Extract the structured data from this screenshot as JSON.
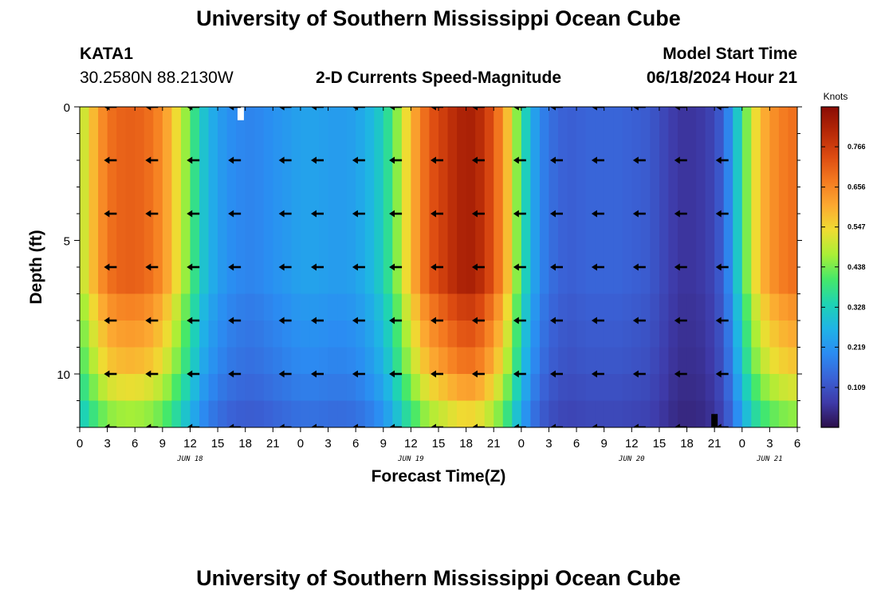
{
  "header": {
    "title": "University of Southern Mississippi Ocean Cube",
    "station": "KATA1",
    "coords": "30.2580N  88.2130W",
    "plot_title": "2-D Currents Speed-Magnitude",
    "model_start_label": "Model Start Time",
    "model_start_value": "06/18/2024 Hour 21"
  },
  "footer": {
    "title": "University of Southern Mississippi Ocean Cube"
  },
  "colors": {
    "scale": [
      "#2c0f4a",
      "#3e3aa8",
      "#3a62d6",
      "#2b8cf2",
      "#1fb3e6",
      "#1ed3b4",
      "#45e86a",
      "#a9ef36",
      "#efdc32",
      "#fca931",
      "#f47a20",
      "#dc4a11",
      "#b52807",
      "#8a0c05"
    ]
  },
  "chart_data": {
    "type": "heatmap",
    "title": "2-D Currents Speed-Magnitude",
    "xlabel": "Forecast Time(Z)",
    "ylabel": "Depth (ft)",
    "units_label": "Knots",
    "x_tick_labels": [
      "0",
      "3",
      "6",
      "9",
      "12",
      "15",
      "18",
      "21",
      "0",
      "3",
      "6",
      "9",
      "12",
      "15",
      "18",
      "21",
      "0",
      "3",
      "6",
      "9",
      "12",
      "15",
      "18",
      "21",
      "0",
      "3",
      "6"
    ],
    "x_hours": [
      0,
      3,
      6,
      9,
      12,
      15,
      18,
      21,
      24,
      27,
      30,
      33,
      36,
      39,
      42,
      45,
      48,
      51,
      54,
      57,
      60,
      63,
      66,
      69,
      72,
      75,
      78
    ],
    "date_labels": [
      {
        "text": "JUN 18",
        "hour": 12
      },
      {
        "text": "JUN 19",
        "hour": 36
      },
      {
        "text": "JUN 20",
        "hour": 60
      },
      {
        "text": "JUN 21",
        "hour": 75
      }
    ],
    "y_ticks": [
      0,
      5,
      10
    ],
    "depth_range_ft": [
      0,
      12
    ],
    "time_range_hours": [
      0,
      78
    ],
    "colorbar_ticks": [
      "0.766",
      "0.656",
      "0.547",
      "0.438",
      "0.328",
      "0.219",
      "0.109"
    ],
    "colorbar_tick_values": [
      0.766,
      0.656,
      0.547,
      0.438,
      0.328,
      0.219,
      0.109
    ],
    "speed_range_knots": [
      0,
      0.875
    ],
    "speed_profile_hours": [
      0,
      1,
      2,
      3,
      4,
      5,
      6,
      7,
      8,
      9,
      10,
      11,
      12,
      13,
      14,
      15,
      16,
      17,
      18,
      19,
      20,
      21,
      22,
      23,
      24,
      25,
      26,
      27,
      28,
      29,
      30,
      31,
      32,
      33,
      34,
      35,
      36,
      37,
      38,
      39,
      40,
      41,
      42,
      43,
      44,
      45,
      46,
      47,
      48,
      49,
      50,
      51,
      52,
      53,
      54,
      55,
      56,
      57,
      58,
      59,
      60,
      61,
      62,
      63,
      64,
      65,
      66,
      67,
      68,
      69,
      70,
      71,
      72,
      73,
      74,
      75,
      76,
      77,
      78
    ],
    "speed_surface_knots": [
      0.47,
      0.55,
      0.62,
      0.68,
      0.7,
      0.71,
      0.71,
      0.7,
      0.68,
      0.64,
      0.58,
      0.5,
      0.42,
      0.33,
      0.27,
      0.24,
      0.21,
      0.2,
      0.19,
      0.19,
      0.2,
      0.21,
      0.22,
      0.23,
      0.24,
      0.24,
      0.24,
      0.23,
      0.23,
      0.23,
      0.24,
      0.26,
      0.29,
      0.33,
      0.4,
      0.5,
      0.58,
      0.66,
      0.72,
      0.75,
      0.78,
      0.81,
      0.83,
      0.82,
      0.78,
      0.72,
      0.64,
      0.52,
      0.38,
      0.27,
      0.2,
      0.16,
      0.14,
      0.13,
      0.13,
      0.14,
      0.14,
      0.14,
      0.14,
      0.14,
      0.13,
      0.13,
      0.12,
      0.1,
      0.08,
      0.06,
      0.06,
      0.06,
      0.07,
      0.09,
      0.14,
      0.24,
      0.38,
      0.5,
      0.58,
      0.63,
      0.66,
      0.68,
      0.69
    ],
    "depth_factors": [
      1.0,
      1.0,
      1.0,
      1.0,
      1.0,
      1.0,
      1.0,
      0.93,
      0.88,
      0.83,
      0.75,
      0.66
    ],
    "vector_rows_depth_ft": [
      0,
      2,
      4,
      6,
      8,
      10,
      12
    ],
    "vector_hours": [
      3.5,
      8,
      12.5,
      17,
      22.5,
      26,
      30.5,
      34.5,
      39,
      43.5,
      48,
      52,
      56.5,
      61,
      65.5,
      70
    ],
    "vector_directions_deg": [
      180,
      180,
      180,
      180,
      180,
      180,
      180,
      180,
      180,
      180,
      180,
      180,
      180,
      180,
      180,
      180
    ],
    "missing_cells": [
      {
        "hour": 17.5,
        "depth_ft": 0,
        "color": "#ffffff"
      },
      {
        "hour": 69,
        "depth_ft": 11.5,
        "color": "#000000"
      }
    ]
  }
}
